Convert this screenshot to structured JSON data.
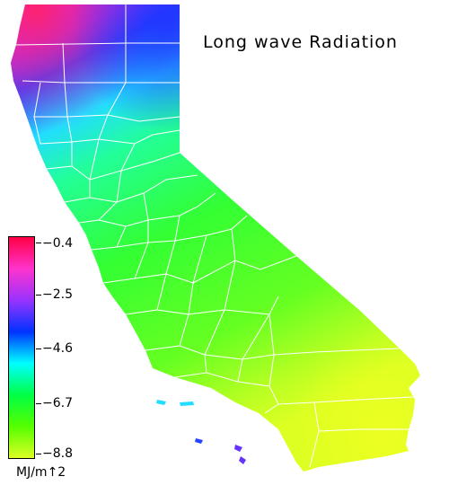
{
  "map": {
    "title": "Long wave Radiation",
    "units": "MJ/m↑2",
    "colors": {
      "magenta": "#ff22bb",
      "purple": "#8833ee",
      "blue": "#2244ff",
      "cyan": "#22ffee",
      "teal": "#22ff99",
      "green": "#33ff22",
      "lime": "#99ff22",
      "yellow": "#ddff22",
      "boundary": "#ffffff"
    },
    "legend": {
      "colors": [
        "#ff0044",
        "#ff33cc",
        "#9933ff",
        "#0033ff",
        "#00ffff",
        "#00ff44",
        "#55ff00",
        "#ddff22"
      ],
      "ticks": [
        {
          "label": "−0.4",
          "value": -0.4
        },
        {
          "label": "−2.5",
          "value": -2.5
        },
        {
          "label": "−4.6",
          "value": -4.6
        },
        {
          "label": "−6.7",
          "value": -6.7
        },
        {
          "label": "−8.8",
          "value": -8.8
        }
      ]
    }
  }
}
